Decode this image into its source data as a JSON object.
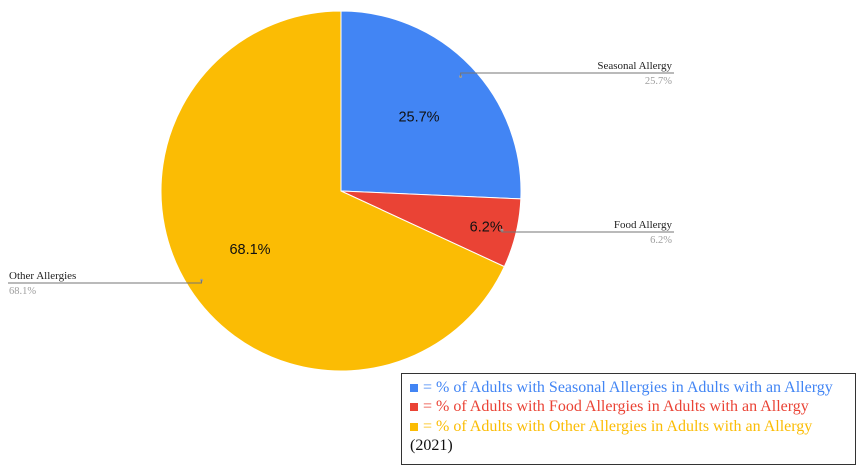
{
  "chart_data": {
    "type": "pie",
    "title": "",
    "slices": [
      {
        "label": "Seasonal Allergy",
        "value": 25.7,
        "display": "25.7%",
        "color": "#4285F4"
      },
      {
        "label": "Food Allergy",
        "value": 6.2,
        "display": "6.2%",
        "color": "#EA4335"
      },
      {
        "label": "Other Allergies",
        "value": 68.1,
        "display": "68.1%",
        "color": "#FBBC04"
      }
    ],
    "legend": {
      "placement": "bottom-right",
      "entries": [
        {
          "text": "= % of Adults with Seasonal Allergies in Adults with an Allergy",
          "color": "#4285F4"
        },
        {
          "text": "= % of Adults with Food Allergies in Adults with an Allergy",
          "color": "#EA4335"
        },
        {
          "text": "= % of Adults with Other Allergies in Adults with an Allergy",
          "color": "#FBBC04"
        }
      ],
      "note": "(2021)"
    }
  }
}
